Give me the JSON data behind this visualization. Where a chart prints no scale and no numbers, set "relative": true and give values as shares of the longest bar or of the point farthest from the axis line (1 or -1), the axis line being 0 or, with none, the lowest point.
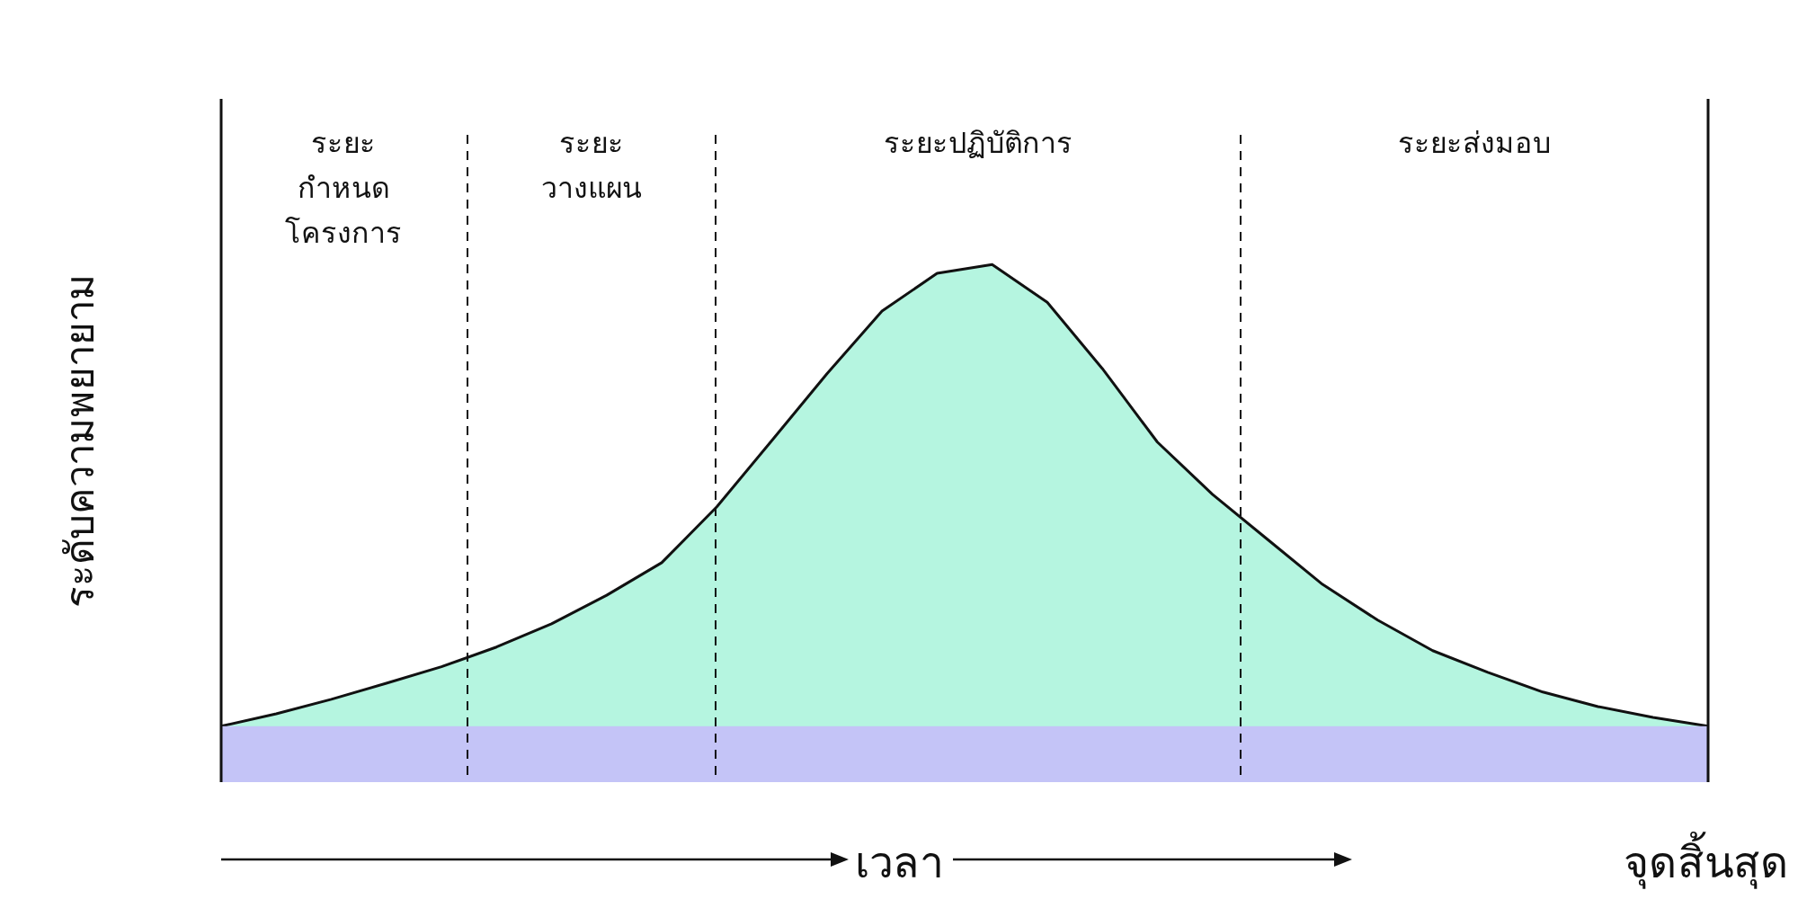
{
  "chart_data": {
    "type": "area",
    "relative": true,
    "xlabel": "เวลา",
    "ylabel": "ระดับความพยายาม",
    "categories": [
      null,
      null,
      null,
      null,
      null,
      null,
      null,
      null,
      null,
      null,
      null,
      null,
      null,
      null,
      null,
      null,
      null,
      null,
      null,
      null,
      null,
      null,
      null,
      null,
      null,
      null,
      null,
      null
    ],
    "series": [
      {
        "color": "#b5f5e0",
        "values": [
          0.108,
          0.132,
          0.16,
          0.191,
          0.223,
          0.261,
          0.306,
          0.361,
          0.424,
          0.532,
          0.66,
          0.789,
          0.91,
          0.983,
          1,
          0.927,
          0.799,
          0.657,
          0.556,
          0.469,
          0.382,
          0.313,
          0.254,
          0.212,
          0.174,
          0.146,
          0.125,
          0.108
        ]
      }
    ],
    "bands": [
      {
        "axis": "y",
        "from": 0,
        "to": 0.108,
        "color": "#c4c4f7"
      }
    ],
    "annotations": [
      "ระยะ\nกำหนด\nโครงการ",
      "ระยะ\nวางแผน",
      "ระยะปฏิบัติการ",
      "ระยะส่งมอบ",
      "จุดสิ้นสุด"
    ]
  }
}
